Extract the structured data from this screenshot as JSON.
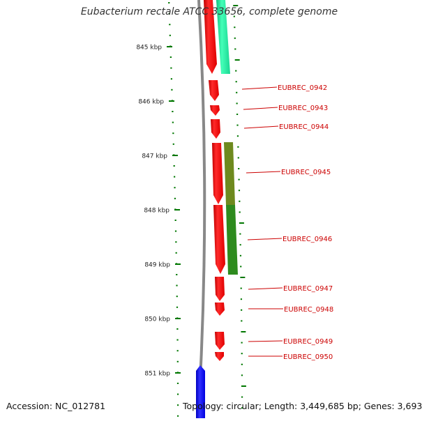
{
  "title": "Eubacterium rectale ATCC 33656, complete genome",
  "accession": "Accession: NC_012781",
  "topology": "Topology: circular; Length: 3,449,685 bp; Genes: 3,693",
  "ruler_ticks": [
    "845 kbp",
    "846 kbp",
    "847 kbp",
    "848 kbp",
    "849 kbp",
    "850 kbp",
    "851 kbp"
  ],
  "gene_labels": [
    "EUBREC_0942",
    "EUBREC_0943",
    "EUBREC_0944",
    "EUBREC_0945",
    "EUBREC_0946",
    "EUBREC_0947",
    "EUBREC_0948",
    "EUBREC_0949",
    "EUBREC_0950"
  ],
  "colors": {
    "gene": "#ff0000",
    "label": "#cc0000",
    "ruler": "#007700",
    "backbone": "#888888",
    "feature_teal": "#22f0a0",
    "feature_olive": "#6e8a1e",
    "feature_green": "#2e8b1e",
    "feature_blue": "#0000ff"
  }
}
